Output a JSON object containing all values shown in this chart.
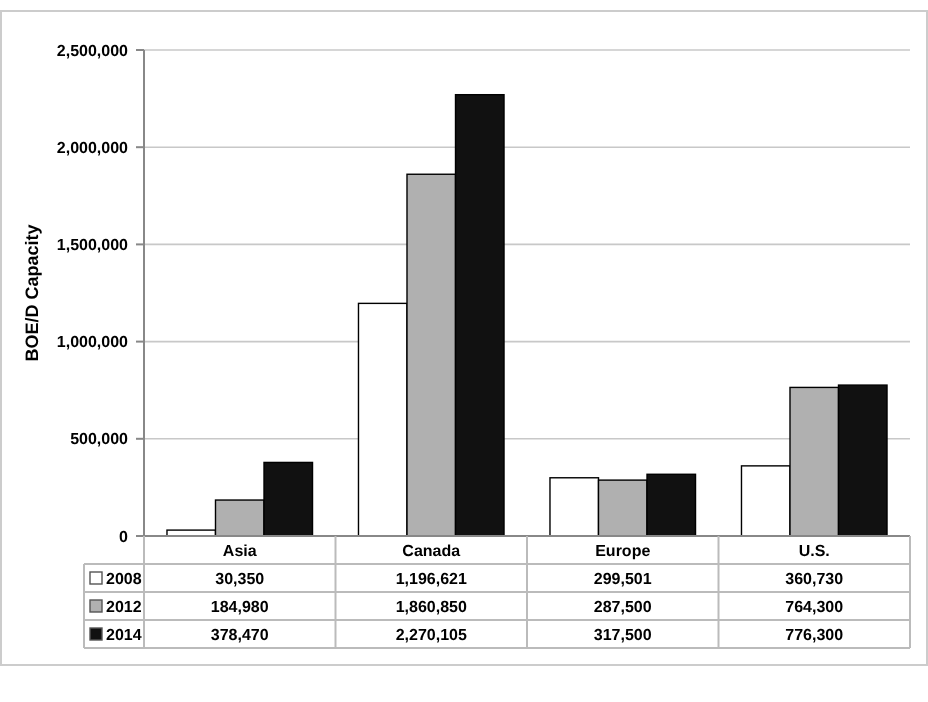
{
  "chart_data": {
    "type": "bar",
    "ylabel": "BOE/D Capacity",
    "categories": [
      "Asia",
      "Canada",
      "Europe",
      "U.S."
    ],
    "series": [
      {
        "name": "2008",
        "color": "#ffffff",
        "values": [
          30350,
          1196621,
          299501,
          360730
        ],
        "value_labels": [
          "30,350",
          "1,196,621",
          "299,501",
          "360,730"
        ]
      },
      {
        "name": "2012",
        "color": "#b0b0b0",
        "values": [
          184980,
          1860850,
          287500,
          764300
        ],
        "value_labels": [
          "184,980",
          "1,860,850",
          "287,500",
          "764,300"
        ]
      },
      {
        "name": "2014",
        "color": "#111111",
        "values": [
          378470,
          2270105,
          317500,
          776300
        ],
        "value_labels": [
          "378,470",
          "2,270,105",
          "317,500",
          "776,300"
        ]
      }
    ],
    "ylim": [
      0,
      2500000
    ],
    "yticks": [
      {
        "value": 0,
        "label": "0"
      },
      {
        "value": 500000,
        "label": "500,000"
      },
      {
        "value": 1000000,
        "label": "1,000,000"
      },
      {
        "value": 1500000,
        "label": "1,500,000"
      },
      {
        "value": 2000000,
        "label": "2,000,000"
      },
      {
        "value": 2500000,
        "label": "2,500,000"
      }
    ],
    "grid": "y",
    "legend": "bottom"
  }
}
